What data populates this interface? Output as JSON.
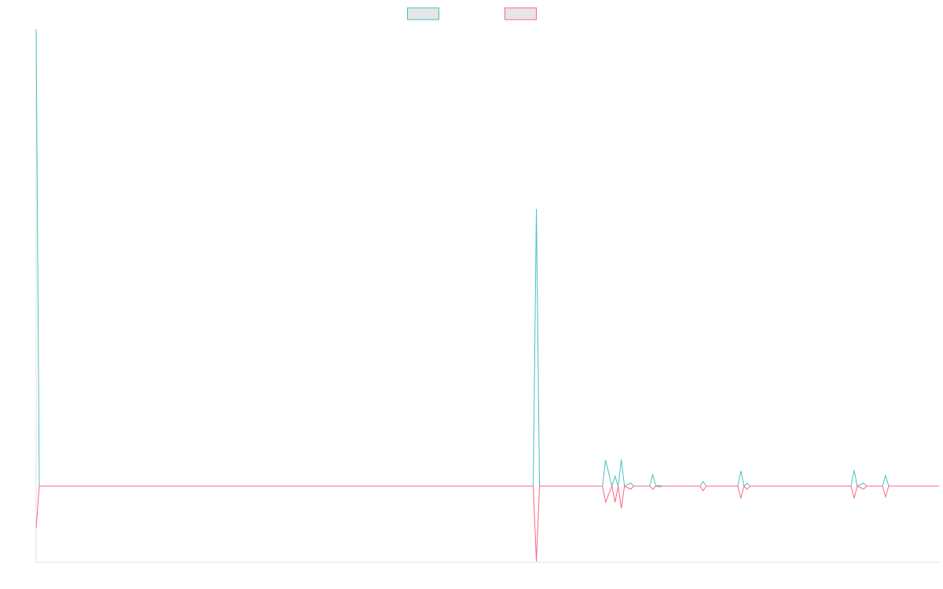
{
  "chart_data": {
    "type": "line",
    "x": [
      0,
      1,
      158,
      159,
      160,
      180,
      181,
      183,
      184,
      185,
      186,
      187,
      189,
      190,
      195,
      196,
      197,
      198,
      199,
      211,
      212,
      213,
      223,
      224,
      225,
      226,
      227,
      259,
      260,
      261,
      263,
      264,
      269,
      270,
      271,
      287
    ],
    "series": [
      {
        "color": "#4bc0c0",
        "values": [
          6,
          0,
          0,
          3.64,
          0,
          0,
          0.34,
          0,
          0.13,
          0,
          0.35,
          0,
          0.04,
          0,
          0,
          0.15,
          0,
          0.01,
          0,
          0,
          0.06,
          0,
          0,
          0.2,
          0,
          0.04,
          0,
          0,
          0.21,
          0,
          0.04,
          0,
          0,
          0.14,
          0,
          0
        ]
      },
      {
        "color": "#ff6384",
        "values": [
          -0.55,
          0,
          0,
          -0.99,
          0,
          0,
          -0.21,
          0,
          -0.21,
          0,
          -0.29,
          0,
          -0.04,
          0,
          0,
          -0.04,
          0,
          -0.01,
          0,
          0,
          -0.06,
          0,
          0,
          -0.16,
          0,
          -0.04,
          0,
          0,
          -0.16,
          0,
          -0.04,
          0,
          0,
          -0.14,
          0,
          0
        ]
      }
    ],
    "xlim": [
      0,
      287
    ],
    "ylim": [
      -1,
      6
    ],
    "legend": "top"
  }
}
